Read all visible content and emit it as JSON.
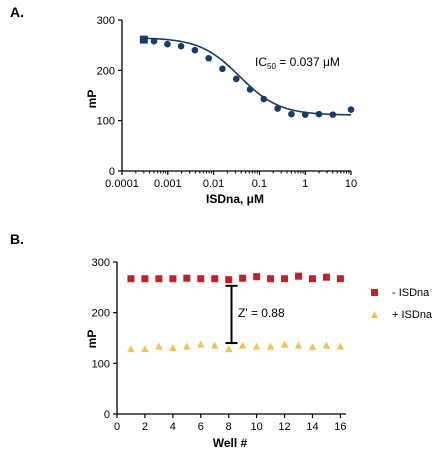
{
  "panel_labels": [
    "A.",
    "B."
  ],
  "colors": {
    "curve": "#1b3a66",
    "points_a": "#1b3a66",
    "minus_isdna": "#b8262b",
    "plus_isdna": "#f2c25a"
  },
  "chart_data": [
    {
      "type": "scatter",
      "panel": "A.",
      "x_scale": "log",
      "xlabel": "ISDna, μM",
      "ylabel": "mP",
      "xlim": [
        0.0001,
        10
      ],
      "ylim": [
        0,
        300
      ],
      "x_ticks": [
        0.0001,
        0.001,
        0.01,
        0.1,
        1,
        10
      ],
      "x_tick_labels": [
        "0.0001",
        "0.001",
        "0.01",
        "0.1",
        "1",
        "10"
      ],
      "y_ticks": [
        0,
        100,
        200,
        300
      ],
      "y_tick_labels": [
        "0",
        "100",
        "200",
        "300"
      ],
      "annotation": {
        "prefix": "IC",
        "subscript": "50",
        "value": " = 0.037 μM"
      },
      "series": [
        {
          "marker": "circle",
          "x": [
            0.0003,
            0.0005,
            0.00098,
            0.00195,
            0.0039,
            0.0078,
            0.0156,
            0.0313,
            0.0625,
            0.125,
            0.25,
            0.5,
            1,
            2,
            4,
            10
          ],
          "y": [
            261,
            258,
            252,
            248,
            240,
            224,
            203,
            183,
            162,
            143,
            124,
            113,
            112,
            113,
            112,
            122
          ]
        },
        {
          "marker": "square",
          "x": [
            0.0003
          ],
          "y": [
            261
          ]
        }
      ],
      "fit": {
        "top": 265,
        "bottom": 111,
        "ic50": 0.037,
        "hill": 1.0
      }
    },
    {
      "type": "scatter",
      "panel": "B.",
      "xlabel": "Well #",
      "ylabel": "mP",
      "xlim": [
        0,
        16.4
      ],
      "ylim": [
        0,
        300
      ],
      "x_ticks": [
        0,
        2,
        4,
        6,
        8,
        10,
        12,
        14,
        16
      ],
      "x_tick_labels": [
        "0",
        "2",
        "4",
        "6",
        "8",
        "10",
        "12",
        "14",
        "16"
      ],
      "y_ticks": [
        0,
        100,
        200,
        300
      ],
      "y_tick_labels": [
        "0",
        "100",
        "200",
        "300"
      ],
      "annotation": {
        "text": "Z' = 0.88"
      },
      "z_bar": {
        "x": 8.2,
        "y_low": 140,
        "y_high": 253
      },
      "legend_position": "right",
      "series": [
        {
          "name": "- ISDna",
          "marker": "square",
          "x": [
            1,
            2,
            3,
            4,
            5,
            6,
            7,
            8,
            9,
            10,
            11,
            12,
            13,
            14,
            15,
            16
          ],
          "y": [
            267,
            267,
            267,
            267,
            268,
            267,
            267,
            265,
            268,
            271,
            267,
            267,
            272,
            267,
            270,
            267
          ]
        },
        {
          "name": "+ ISDna",
          "marker": "triangle",
          "x": [
            1,
            2,
            3,
            4,
            5,
            6,
            7,
            8,
            9,
            10,
            11,
            12,
            13,
            14,
            15,
            16
          ],
          "y": [
            128,
            128,
            133,
            130,
            133,
            137,
            135,
            128,
            135,
            133,
            133,
            137,
            135,
            132,
            135,
            133
          ]
        }
      ]
    }
  ]
}
